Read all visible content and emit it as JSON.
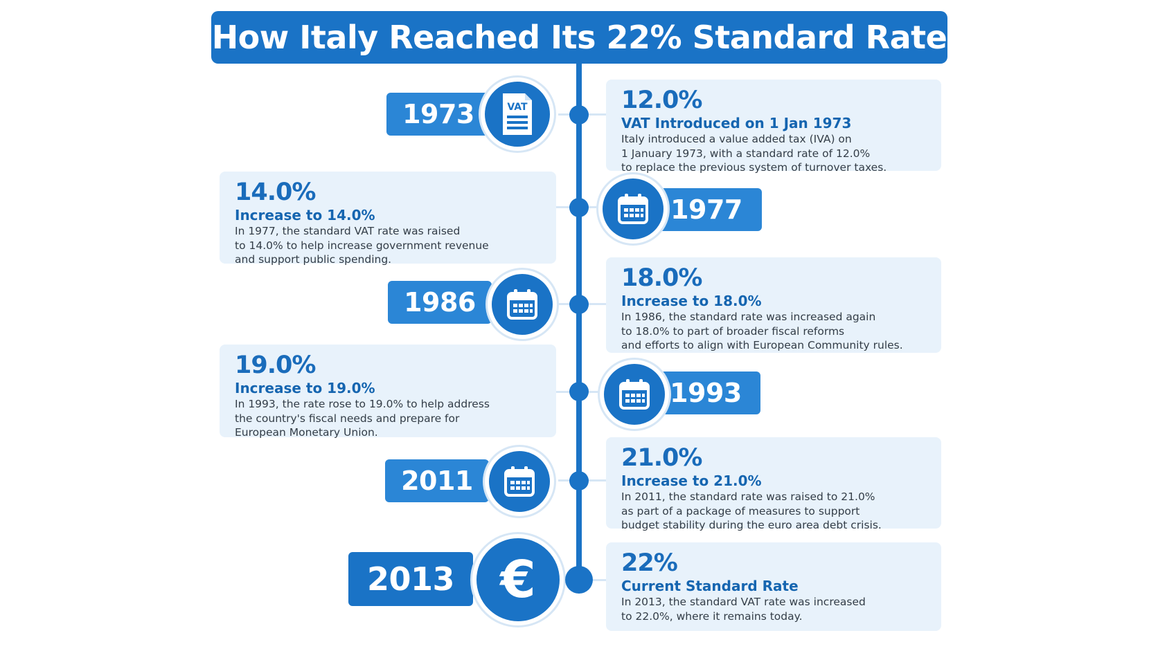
{
  "title": "How Italy Reached Its 22% Standard Rate",
  "colors": {
    "primary": "#1a73c6",
    "light_card": "#e8f2fb",
    "year_tab": "#2b86d6"
  },
  "events": [
    {
      "year": "1973",
      "icon": "vat-document-icon",
      "icon_text": "VAT",
      "rate": "12.0%",
      "heading": "VAT Introduced on 1 Jan 1973",
      "body": "Italy introduced a value added tax (IVA) on\n1 January 1973, with a standard rate of 12.0%\nto replace the previous system of turnover taxes."
    },
    {
      "year": "1977",
      "icon": "calendar-icon",
      "rate": "14.0%",
      "heading": "Increase to 14.0%",
      "body": "In 1977, the standard VAT rate was raised\nto 14.0% to help increase government revenue\nand support public spending."
    },
    {
      "year": "1986",
      "icon": "calendar-icon",
      "rate": "18.0%",
      "heading": "Increase to 18.0%",
      "body": "In 1986, the standard rate was increased again\nto 18.0% to part of broader fiscal reforms\nand efforts to align with European Community rules."
    },
    {
      "year": "1993",
      "icon": "calendar-icon",
      "rate": "19.0%",
      "heading": "Increase to 19.0%",
      "body": "In 1993, the rate rose to 19.0% to help address\nthe country's fiscal needs and prepare for\nEuropean Monetary Union."
    },
    {
      "year": "2011",
      "icon": "calendar-icon",
      "rate": "21.0%",
      "heading": "Increase to 21.0%",
      "body": "In 2011, the standard rate was raised to 21.0%\nas part of a package of measures to support\nbudget stability during the euro area debt crisis."
    },
    {
      "year": "2013",
      "icon": "euro-icon",
      "icon_text": "€",
      "rate": "22%",
      "heading": "Current Standard Rate",
      "body": "In 2013, the standard VAT rate was increased\nto 22.0%, where it remains today."
    }
  ]
}
